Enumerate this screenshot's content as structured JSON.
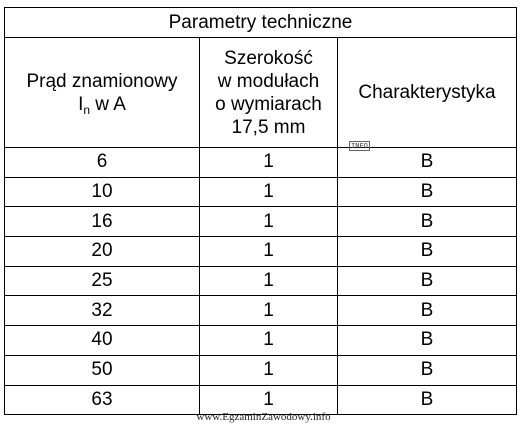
{
  "table": {
    "title": "Parametry techniczne",
    "header": {
      "current": {
        "line1": "Prąd znamionowy",
        "symbol": "I",
        "subscript": "n",
        "unit": " w A"
      },
      "width": [
        "Szerokość",
        "w modułach",
        "o wymiarach",
        "17,5 mm"
      ],
      "characteristic": "Charakterystyka"
    },
    "rows": [
      [
        6,
        1,
        "B"
      ],
      [
        10,
        1,
        "B"
      ],
      [
        16,
        1,
        "B"
      ],
      [
        20,
        1,
        "B"
      ],
      [
        25,
        1,
        "B"
      ],
      [
        32,
        1,
        "B"
      ],
      [
        40,
        1,
        "B"
      ],
      [
        50,
        1,
        "B"
      ],
      [
        63,
        1,
        "B"
      ]
    ]
  },
  "info_icon": "INFO",
  "footer": "www.EgzaminZawodowy.info"
}
